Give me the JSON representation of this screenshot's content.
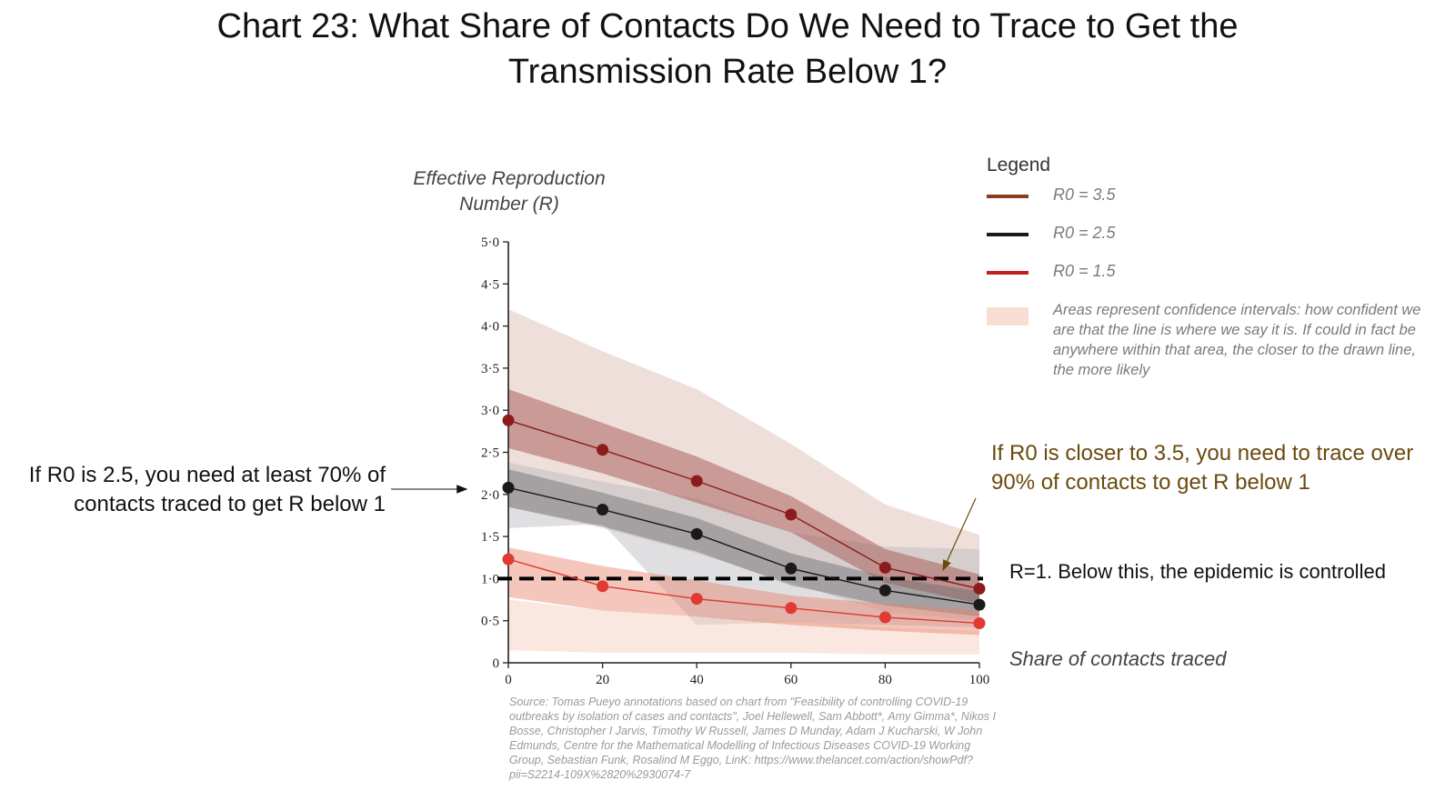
{
  "title": "Chart 23: What Share of Contacts Do We Need to Trace to Get the Transmission Rate Below 1?",
  "chart_data": {
    "type": "line",
    "title": "Chart 23: What Share of Contacts Do We Need to Trace to Get the Transmission Rate Below 1?",
    "ylabel": "Effective Reproduction Number (R)",
    "xlabel": "Share of contacts traced",
    "x": [
      0,
      20,
      40,
      60,
      80,
      100
    ],
    "x_tick_labels": [
      "0",
      "20",
      "40",
      "60",
      "80",
      "100"
    ],
    "y_tick_values": [
      0,
      0.5,
      1.0,
      1.5,
      2.0,
      2.5,
      3.0,
      3.5,
      4.0,
      4.5,
      5.0
    ],
    "y_tick_labels": [
      "0",
      "0·5",
      "1·0",
      "1·5",
      "2·0",
      "2·5",
      "3·0",
      "3·5",
      "4·0",
      "4·5",
      "5·0"
    ],
    "xlim": [
      0,
      100
    ],
    "ylim": [
      0,
      5
    ],
    "grid": false,
    "legend_position": "right",
    "series": [
      {
        "name": "R0 = 3.5",
        "color": "#8b1c1c",
        "values": [
          2.88,
          2.53,
          2.16,
          1.76,
          1.13,
          0.88
        ],
        "inner_band": {
          "lower": [
            2.55,
            2.25,
            1.9,
            1.55,
            0.95,
            0.7
          ],
          "upper": [
            3.25,
            2.85,
            2.45,
            1.98,
            1.35,
            1.05
          ]
        },
        "outer_band": {
          "lower": [
            1.85,
            1.6,
            1.3,
            0.95,
            0.6,
            0.5
          ],
          "upper": [
            4.2,
            3.7,
            3.25,
            2.6,
            1.88,
            1.52
          ]
        }
      },
      {
        "name": "R0 = 2.5",
        "color": "#1a1a1a",
        "values": [
          2.08,
          1.82,
          1.53,
          1.12,
          0.86,
          0.69
        ],
        "inner_band": {
          "lower": [
            1.85,
            1.62,
            1.32,
            0.92,
            0.68,
            0.55
          ],
          "upper": [
            2.3,
            2.02,
            1.72,
            1.3,
            1.02,
            0.85
          ]
        },
        "outer_band": {
          "lower": [
            1.6,
            1.65,
            0.45,
            0.48,
            0.45,
            0.42
          ],
          "upper": [
            2.38,
            2.15,
            1.95,
            1.55,
            1.38,
            1.35
          ]
        }
      },
      {
        "name": "R0 = 1.5",
        "color": "#e03a33",
        "values": [
          1.23,
          0.91,
          0.76,
          0.65,
          0.54,
          0.47
        ],
        "inner_band": {
          "lower": [
            0.78,
            0.62,
            0.55,
            0.45,
            0.38,
            0.33
          ],
          "upper": [
            1.37,
            1.15,
            0.98,
            0.8,
            0.7,
            0.62
          ]
        },
        "outer_band": {
          "lower": [
            0.15,
            0.12,
            0.12,
            0.12,
            0.1,
            0.1
          ],
          "upper": [
            0.75,
            0.62,
            0.55,
            0.5,
            0.42,
            0.38
          ]
        }
      }
    ],
    "reference_line": {
      "y": 1.0,
      "label": "R=1. Below this, the epidemic is controlled"
    }
  },
  "axis": {
    "y_label": "Effective Reproduction Number (R)",
    "x_label": "Share of contacts traced"
  },
  "legend": {
    "title": "Legend",
    "items": [
      {
        "label": "R0 = 3.5",
        "color": "#8b3a1e"
      },
      {
        "label": "R0 = 2.5",
        "color": "#1a1a1a"
      },
      {
        "label": "R0 = 1.5",
        "color": "#c0201f"
      }
    ],
    "area_label": "Areas represent confidence intervals: how confident we are that the line is where we say it is. If could in fact be anywhere within that area, the closer to the drawn line, the more likely",
    "area_color": "#f6dfd2"
  },
  "annotations": {
    "left": "If R0 is 2.5, you need at least 70% of contacts traced to get R below 1",
    "right": "If R0 is closer to 3.5, you need to trace over 90% of contacts to get R below 1",
    "reference": "R=1. Below this, the epidemic is controlled"
  },
  "source": "Source: Tomas Pueyo annotations based on chart from \"Feasibility of controlling COVID-19 outbreaks by isolation of cases and contacts\", Joel Hellewell, Sam Abbott*, Amy Gimma*, Nikos I Bosse, Christopher I Jarvis, Timothy W Russell, James D Munday, Adam J Kucharski, W John Edmunds, Centre for the Mathematical Modelling of Infectious Diseases COVID-19 Working Group, Sebastian Funk, Rosalind M Eggo, LinK: https://www.thelancet.com/action/showPdf?pii=S2214-109X%2820%2930074-7"
}
